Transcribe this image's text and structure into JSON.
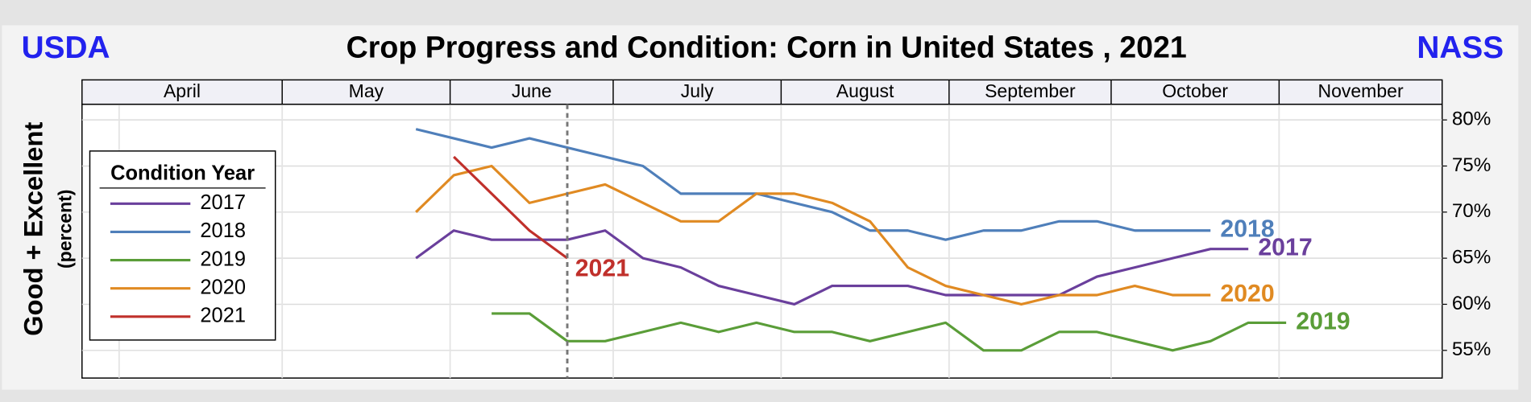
{
  "header": {
    "left": "USDA",
    "right": "NASS"
  },
  "chart_data": {
    "type": "line",
    "title": "Crop Progress and Condition: Corn in United States , 2021",
    "y_label": "Good + Excellent",
    "y_sublabel": "(percent)",
    "months": [
      "April",
      "May",
      "June",
      "July",
      "August",
      "September",
      "October",
      "November"
    ],
    "categories": [
      null,
      null,
      null,
      null,
      null,
      null,
      null,
      null,
      null,
      null,
      null,
      null,
      null,
      null,
      null,
      null,
      null,
      null,
      null,
      null,
      null,
      null,
      null,
      null
    ],
    "ylim": [
      52,
      81.7
    ],
    "yticks": [
      {
        "value": 55,
        "label": "55%"
      },
      {
        "value": 60,
        "label": "60%"
      },
      {
        "value": 65,
        "label": "65%"
      },
      {
        "value": 70,
        "label": "70%"
      },
      {
        "value": 75,
        "label": "75%"
      },
      {
        "value": 80,
        "label": "80%"
      }
    ],
    "grid": true,
    "legend_title": "Condition Year",
    "legend_position": "left",
    "series": [
      {
        "name": "2017",
        "color": "#6a3f9c",
        "values": [
          65,
          68,
          67,
          67,
          67,
          68,
          65,
          64,
          62,
          61,
          60,
          62,
          62,
          62,
          61,
          61,
          61,
          61,
          63,
          64,
          65,
          66,
          66,
          null
        ]
      },
      {
        "name": "2018",
        "color": "#4f7fba",
        "values": [
          79,
          78,
          77,
          78,
          77,
          76,
          75,
          72,
          72,
          72,
          71,
          70,
          68,
          68,
          67,
          68,
          68,
          69,
          69,
          68,
          68,
          68,
          null,
          null
        ]
      },
      {
        "name": "2019",
        "color": "#5a9d38",
        "values": [
          null,
          null,
          59,
          59,
          56,
          56,
          57,
          58,
          57,
          58,
          57,
          57,
          56,
          57,
          58,
          55,
          55,
          57,
          57,
          56,
          55,
          56,
          58,
          58
        ]
      },
      {
        "name": "2020",
        "color": "#e08a22",
        "values": [
          70,
          74,
          75,
          71,
          72,
          73,
          71,
          69,
          69,
          72,
          72,
          71,
          69,
          64,
          62,
          61,
          60,
          61,
          61,
          62,
          61,
          61,
          null,
          null
        ]
      },
      {
        "name": "2021",
        "color": "#c0302b",
        "values": [
          null,
          76,
          72,
          68,
          65,
          null,
          null,
          null,
          null,
          null,
          null,
          null,
          null,
          null,
          null,
          null,
          null,
          null,
          null,
          null,
          null,
          null,
          null,
          null
        ]
      }
    ]
  }
}
